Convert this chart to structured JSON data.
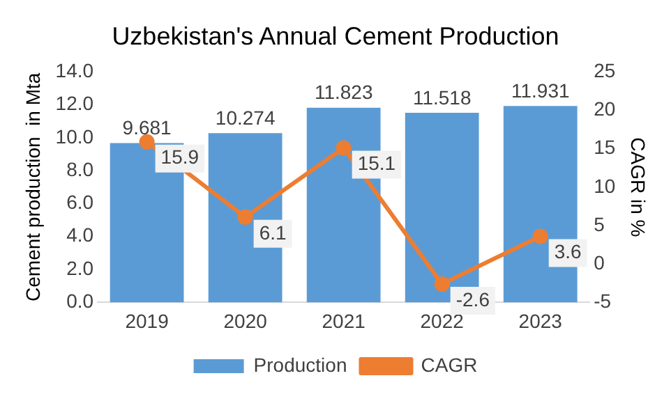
{
  "chart_data": {
    "type": "bar",
    "title": "Uzbekistan's Annual Cement Production",
    "ylabel": "Cement production  in Mta",
    "y2label": "CAGR in %",
    "categories": [
      "2019",
      "2020",
      "2021",
      "2022",
      "2023"
    ],
    "series": [
      {
        "name": "Production",
        "color": "#5b9bd5",
        "values": [
          9.681,
          10.274,
          11.823,
          11.518,
          11.931
        ]
      },
      {
        "name": "CAGR",
        "type": "line",
        "axis": "y2",
        "color": "#ed7d31",
        "values": [
          15.9,
          6.1,
          15.1,
          -2.6,
          3.6
        ],
        "marker": "circle"
      }
    ],
    "ylim": [
      0,
      14
    ],
    "yticks": [
      {
        "value": 0,
        "label": "0.0"
      },
      {
        "value": 2,
        "label": "2.0"
      },
      {
        "value": 4,
        "label": "4.0"
      },
      {
        "value": 6,
        "label": "6.0"
      },
      {
        "value": 8,
        "label": "8.0"
      },
      {
        "value": 10,
        "label": "10.0"
      },
      {
        "value": 12,
        "label": "12.0"
      },
      {
        "value": 14,
        "label": "14.0"
      }
    ],
    "y2lim": [
      -5,
      25
    ],
    "y2ticks": [
      -5,
      0,
      5,
      10,
      15,
      20,
      25
    ],
    "data_labels": true,
    "legend": "bottom",
    "grid": false
  }
}
